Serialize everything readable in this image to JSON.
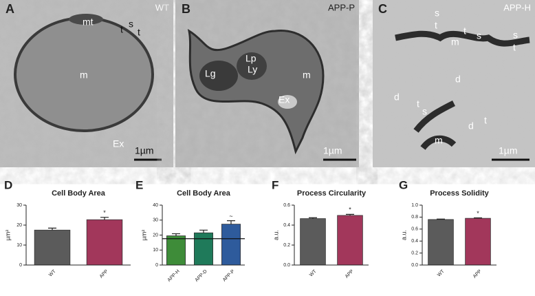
{
  "panels": [
    {
      "letter": "A",
      "condition": "WT",
      "labels": [
        "mt",
        "t",
        "s",
        "t",
        "m",
        "Ex"
      ],
      "scale": "1µm"
    },
    {
      "letter": "B",
      "condition": "APP-P",
      "labels": [
        "Lp",
        "Lg",
        "Ly",
        "m",
        "Ex"
      ],
      "scale": "1µm"
    },
    {
      "letter": "C",
      "condition": "APP-H",
      "labels": [
        "s",
        "t",
        "t",
        "s",
        "m",
        "s",
        "t",
        "d",
        "d",
        "t",
        "s",
        "d",
        "t",
        "m"
      ],
      "scale": "1µm"
    }
  ],
  "chart_data": [
    {
      "type": "bar",
      "label": "D",
      "title": "Cell Body Area",
      "ylabel": "µm²",
      "categories": [
        "WT",
        "APP"
      ],
      "values": [
        17.5,
        22.7
      ],
      "errors": [
        1.0,
        1.2
      ],
      "colors": [
        "#5b5b5b",
        "#a2375b"
      ],
      "significance": [
        null,
        "*"
      ],
      "ylim": [
        0,
        30
      ],
      "yticks": [
        0,
        10,
        20,
        30
      ]
    },
    {
      "type": "bar",
      "label": "E",
      "title": "Cell Body Area",
      "ylabel": "µm²",
      "categories": [
        "APP-H",
        "APP-D",
        "APP-P"
      ],
      "values": [
        19.5,
        21.5,
        27.3
      ],
      "errors": [
        1.4,
        1.8,
        2.3
      ],
      "colors": [
        "#3e8c39",
        "#1f7a5a",
        "#2e5b9c"
      ],
      "significance": [
        null,
        null,
        "~"
      ],
      "reference": 17.6,
      "ylim": [
        0,
        40
      ],
      "yticks": [
        0,
        10,
        20,
        30,
        40
      ]
    },
    {
      "type": "bar",
      "label": "F",
      "title": "Process Circularity",
      "ylabel": "a.u.",
      "categories": [
        "WT",
        "APP"
      ],
      "values": [
        0.465,
        0.497
      ],
      "errors": [
        0.009,
        0.011
      ],
      "colors": [
        "#5b5b5b",
        "#a2375b"
      ],
      "significance": [
        null,
        "*"
      ],
      "ylim": [
        0,
        0.6
      ],
      "yticks": [
        {
          "value": 0,
          "label": "0.0"
        },
        0.2,
        0.4,
        0.6
      ]
    },
    {
      "type": "bar",
      "label": "G",
      "title": "Process Solidity",
      "ylabel": "a.u.",
      "categories": [
        "WT",
        "APP"
      ],
      "values": [
        0.76,
        0.78
      ],
      "errors": [
        0.007,
        0.008
      ],
      "colors": [
        "#5b5b5b",
        "#a2375b"
      ],
      "significance": [
        null,
        "*"
      ],
      "ylim": [
        0,
        1
      ],
      "yticks": [
        {
          "value": 0,
          "label": "0.0"
        },
        0.2,
        0.4,
        0.6,
        0.8,
        {
          "value": 1,
          "label": "1.0"
        }
      ]
    }
  ]
}
